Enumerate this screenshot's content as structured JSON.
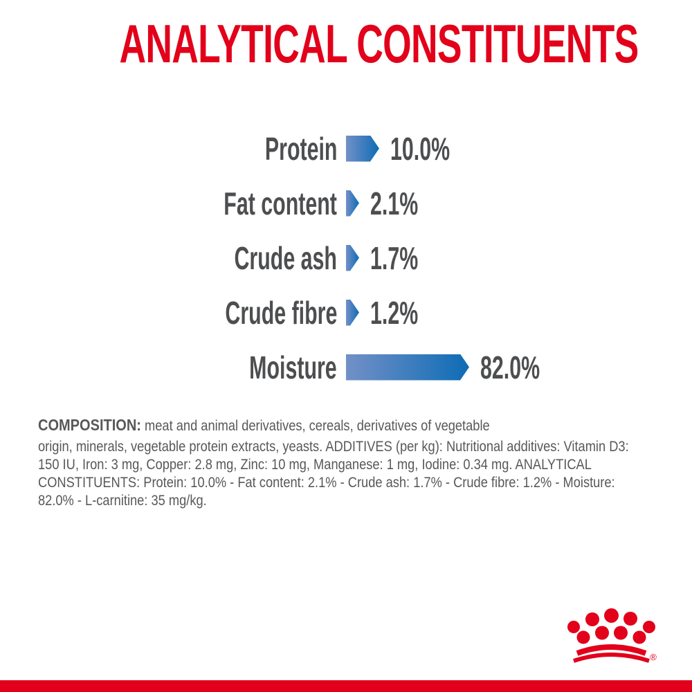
{
  "title": {
    "text": "ANALYTICAL CONSTITUENTS",
    "color": "#e2001a"
  },
  "chart_data": {
    "type": "bar",
    "orientation": "horizontal",
    "title": "ANALYTICAL CONSTITUENTS",
    "unit": "%",
    "categories": [
      "Protein",
      "Fat content",
      "Crude ash",
      "Crude fibre",
      "Moisture"
    ],
    "values": [
      10.0,
      2.1,
      1.7,
      1.2,
      82.0
    ],
    "value_labels": [
      "10.0%",
      "2.1%",
      "1.7%",
      "1.2%",
      "82.0%"
    ],
    "xlim": [
      0,
      100
    ],
    "grid": false,
    "legend": false,
    "bar_style": {
      "shape": "right-arrow",
      "gradient_start": "#7390c7",
      "gradient_end": "#0d6cb5"
    },
    "label_color": "#4d4e50"
  },
  "composition": {
    "lead": "COMPOSITION:",
    "line1_rest": " meat and animal derivatives, cereals, derivatives of vegetable",
    "rest": "origin, minerals, vegetable protein extracts, yeasts. ADDITIVES (per kg): Nutritional additives: Vitamin D3:\n150 IU, Iron: 3 mg, Copper: 2.8 mg, Zinc: 10 mg, Manganese: 1 mg, Iodine: 0.34 mg. ANALYTICAL\nCONSTITUENTS: Protein: 10.0% - Fat content: 2.1% - Crude ash: 1.7% - Crude fibre: 1.2% - Moisture:\n82.0% - L-carnitine: 35 mg/kg.",
    "text_color": "#58585a"
  },
  "footer": {
    "brand_logo": "royal-canin-crown",
    "registered_mark": "®",
    "logo_color": "#e2001a",
    "bar_color": "#e2001a"
  }
}
